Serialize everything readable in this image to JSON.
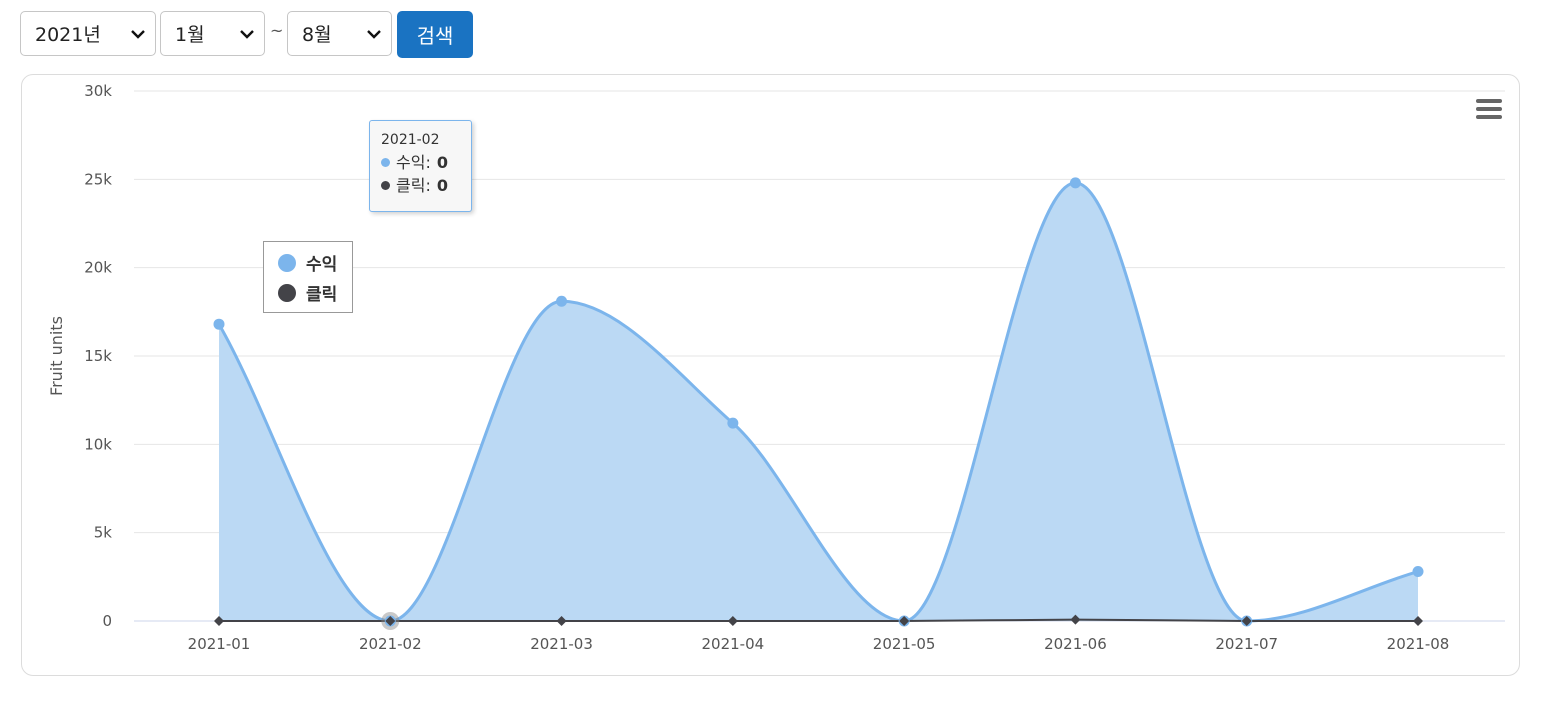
{
  "filters": {
    "year": "2021년",
    "start_month": "1월",
    "separator": "~",
    "end_month": "8월",
    "search_label": "검색"
  },
  "colors": {
    "revenue": "#7cb5ec",
    "revenue_fill": "#bbd9f4",
    "clicks": "#434348",
    "button": "#1a73c2"
  },
  "legend": {
    "items": [
      {
        "label": "수익",
        "color": "#7cb5ec"
      },
      {
        "label": "클릭",
        "color": "#434348"
      }
    ]
  },
  "tooltip": {
    "title": "2021-02",
    "rows": [
      {
        "label": "수익",
        "value": "0"
      },
      {
        "label": "클릭",
        "value": "0"
      }
    ]
  },
  "chart_data": {
    "type": "area",
    "title": "",
    "xlabel": "",
    "ylabel": "Fruit units",
    "categories": [
      "2021-01",
      "2021-02",
      "2021-03",
      "2021-04",
      "2021-05",
      "2021-06",
      "2021-07",
      "2021-08"
    ],
    "yticks": [
      "0",
      "5k",
      "10k",
      "15k",
      "20k",
      "25k",
      "30k"
    ],
    "ylim": [
      0,
      30000
    ],
    "grid": true,
    "legend_position": "top-left",
    "series": [
      {
        "name": "수익",
        "type": "area",
        "values": [
          16800,
          0,
          18100,
          11200,
          0,
          24800,
          0,
          2800
        ]
      },
      {
        "name": "클릭",
        "type": "line",
        "values": [
          0,
          0,
          0,
          0,
          0,
          80,
          0,
          0
        ]
      }
    ]
  }
}
